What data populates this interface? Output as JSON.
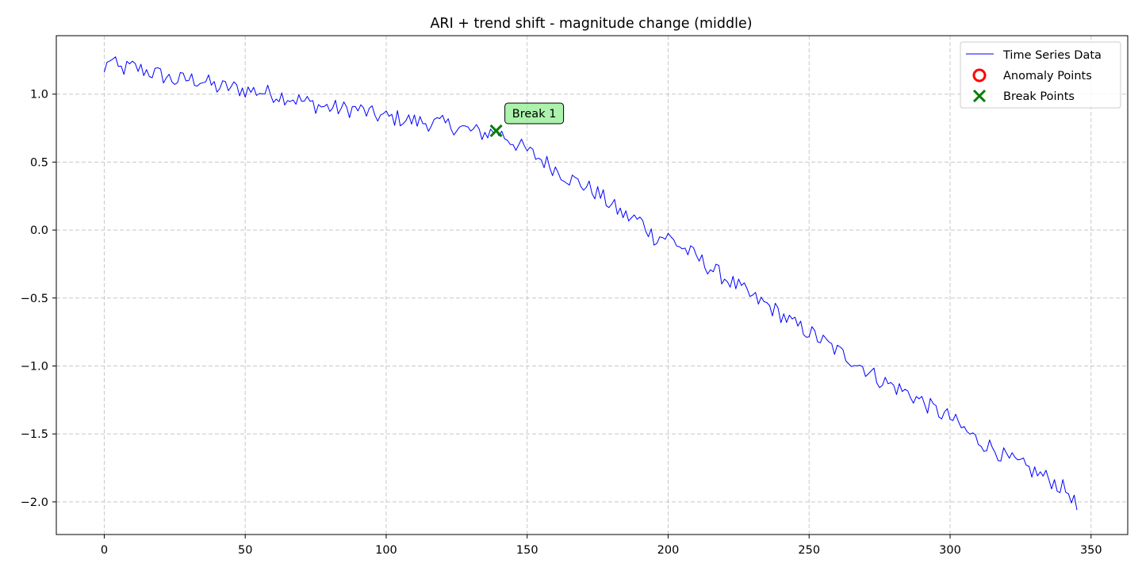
{
  "chart_data": {
    "type": "line",
    "title": "ARI + trend shift - magnitude change (middle)",
    "xlabel": "",
    "ylabel": "",
    "xlim": [
      -17,
      363
    ],
    "ylim": [
      -2.24,
      1.43
    ],
    "x_ticks": [
      0,
      50,
      100,
      150,
      200,
      250,
      300,
      350
    ],
    "y_ticks": [
      1.0,
      0.5,
      0.0,
      -0.5,
      -1.0,
      -1.5,
      -2.0
    ],
    "x_tick_labels": [
      "0",
      "50",
      "100",
      "150",
      "200",
      "250",
      "300",
      "350"
    ],
    "y_tick_labels": [
      "1.0",
      "0.5",
      "0.0",
      "−0.5",
      "−1.0",
      "−1.5",
      "−2.0"
    ],
    "grid": true,
    "legend_position": "top-right",
    "series": [
      {
        "name": "Time Series Data",
        "color": "#0000ff",
        "anchors": [
          [
            0,
            1.16
          ],
          [
            2,
            1.27
          ],
          [
            5,
            1.18
          ],
          [
            10,
            1.2
          ],
          [
            15,
            1.17
          ],
          [
            20,
            1.14
          ],
          [
            25,
            1.1
          ],
          [
            30,
            1.11
          ],
          [
            35,
            1.1
          ],
          [
            40,
            1.05
          ],
          [
            45,
            1.05
          ],
          [
            50,
            1.03
          ],
          [
            55,
            1.02
          ],
          [
            60,
            1.0
          ],
          [
            65,
            0.98
          ],
          [
            70,
            0.95
          ],
          [
            75,
            0.92
          ],
          [
            80,
            0.9
          ],
          [
            85,
            0.89
          ],
          [
            90,
            0.89
          ],
          [
            95,
            0.85
          ],
          [
            100,
            0.83
          ],
          [
            105,
            0.82
          ],
          [
            110,
            0.8
          ],
          [
            115,
            0.79
          ],
          [
            120,
            0.78
          ],
          [
            125,
            0.76
          ],
          [
            130,
            0.73
          ],
          [
            135,
            0.71
          ],
          [
            139,
            0.73
          ],
          [
            145,
            0.65
          ],
          [
            150,
            0.58
          ],
          [
            155,
            0.52
          ],
          [
            160,
            0.45
          ],
          [
            165,
            0.38
          ],
          [
            170,
            0.33
          ],
          [
            175,
            0.27
          ],
          [
            180,
            0.18
          ],
          [
            185,
            0.1
          ],
          [
            190,
            0.07
          ],
          [
            195,
            -0.05
          ],
          [
            200,
            -0.05
          ],
          [
            205,
            -0.13
          ],
          [
            210,
            -0.2
          ],
          [
            215,
            -0.28
          ],
          [
            220,
            -0.35
          ],
          [
            225,
            -0.42
          ],
          [
            230,
            -0.5
          ],
          [
            235,
            -0.55
          ],
          [
            240,
            -0.62
          ],
          [
            245,
            -0.7
          ],
          [
            250,
            -0.75
          ],
          [
            255,
            -0.82
          ],
          [
            260,
            -0.89
          ],
          [
            265,
            -0.95
          ],
          [
            270,
            -1.02
          ],
          [
            275,
            -1.1
          ],
          [
            280,
            -1.15
          ],
          [
            285,
            -1.2
          ],
          [
            290,
            -1.26
          ],
          [
            295,
            -1.33
          ],
          [
            300,
            -1.38
          ],
          [
            305,
            -1.47
          ],
          [
            310,
            -1.55
          ],
          [
            315,
            -1.6
          ],
          [
            320,
            -1.68
          ],
          [
            325,
            -1.73
          ],
          [
            330,
            -1.78
          ],
          [
            335,
            -1.83
          ],
          [
            340,
            -1.9
          ],
          [
            343,
            -1.95
          ],
          [
            345,
            -2.06
          ]
        ]
      }
    ],
    "anomaly_points": [],
    "break_points": [
      {
        "x": 139,
        "y": 0.73,
        "label": "Break 1"
      }
    ],
    "legend": [
      {
        "label": "Time Series Data",
        "marker": "line",
        "color": "#0000ff"
      },
      {
        "label": "Anomaly Points",
        "marker": "circle",
        "color": "#ff0000"
      },
      {
        "label": "Break Points",
        "marker": "x",
        "color": "#008000"
      }
    ]
  }
}
